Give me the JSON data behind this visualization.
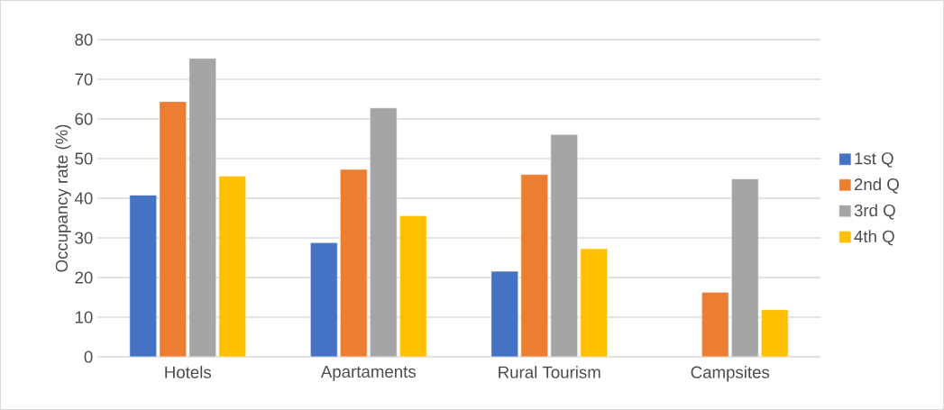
{
  "chart_data": {
    "type": "bar",
    "ylabel": "Occupancy rate (%)",
    "categories": [
      "Hotels",
      "Apartaments",
      "Rural Tourism",
      "Campsites"
    ],
    "series": [
      {
        "name": "1st Q",
        "color": "#4472c4",
        "values": [
          40.8,
          28.8,
          21.6,
          null
        ]
      },
      {
        "name": "2nd Q",
        "color": "#ed7d31",
        "values": [
          64.4,
          47.3,
          46.0,
          16.3
        ]
      },
      {
        "name": "3rd Q",
        "color": "#a5a5a5",
        "values": [
          75.3,
          62.8,
          56.1,
          44.9
        ]
      },
      {
        "name": "4th Q",
        "color": "#ffc000",
        "values": [
          45.6,
          35.6,
          27.3,
          11.9
        ]
      }
    ],
    "ylim": [
      0,
      80
    ],
    "yticks": [
      0,
      10,
      20,
      30,
      40,
      50,
      60,
      70,
      80
    ],
    "grid": "y",
    "legend": "right"
  }
}
